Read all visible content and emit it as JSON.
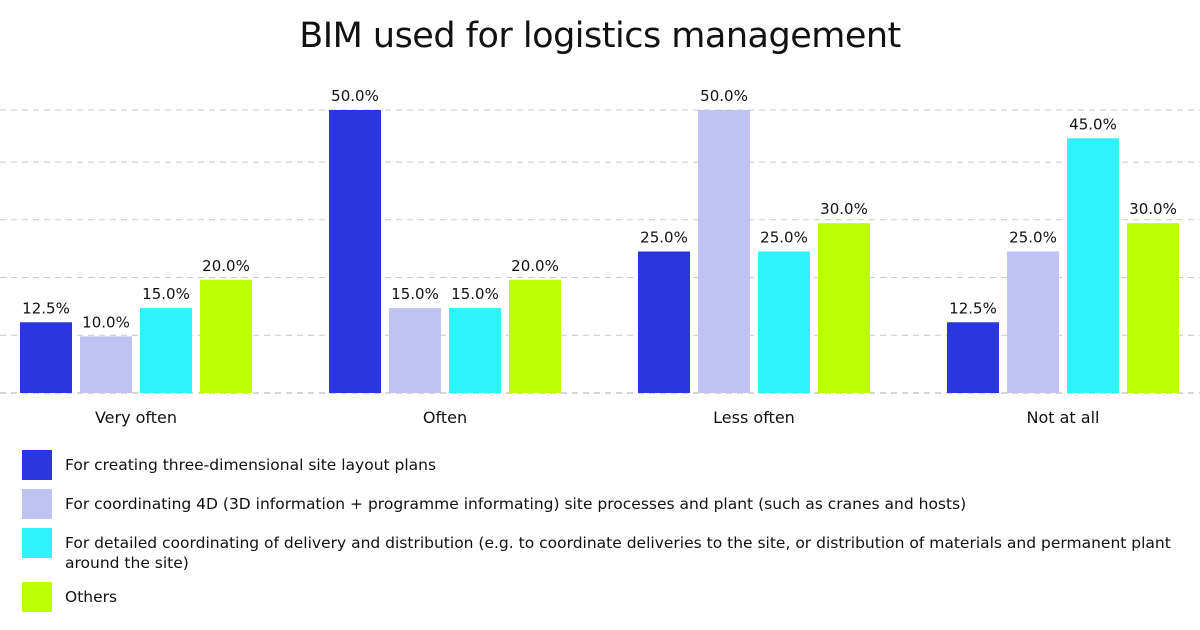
{
  "chart_data": {
    "type": "bar",
    "title": "BIM used for logistics management",
    "categories": [
      "Very often",
      "Often",
      "Less often",
      "Not at all"
    ],
    "ylim": [
      0,
      50
    ],
    "grid": true,
    "legend_position": "bottom",
    "series": [
      {
        "name": "For creating three-dimensional site layout plans",
        "color": "#2a37de",
        "values": [
          12.5,
          50.0,
          25.0,
          12.5
        ],
        "labels": [
          "12.5%",
          "50.0%",
          "25.0%",
          "12.5%"
        ]
      },
      {
        "name": "For coordinating 4D (3D information + programme informating) site processes and plant (such as cranes and hosts)",
        "color": "#bfc2f2",
        "values": [
          10.0,
          15.0,
          50.0,
          25.0
        ],
        "labels": [
          "10.0%",
          "15.0%",
          "50.0%",
          "25.0%"
        ]
      },
      {
        "name": "For detailed coordinating of delivery and distribution (e.g. to coordinate deliveries to the site, or distribution of materials and permanent plant around the site)",
        "color": "#2ef2fc",
        "values": [
          15.0,
          15.0,
          25.0,
          45.0
        ],
        "labels": [
          "15.0%",
          "15.0%",
          "25.0%",
          "45.0%"
        ]
      },
      {
        "name": "Others",
        "color": "#bbff00",
        "values": [
          20.0,
          20.0,
          30.0,
          30.0
        ],
        "labels": [
          "20.0%",
          "20.0%",
          "30.0%",
          "30.0%"
        ]
      }
    ]
  }
}
